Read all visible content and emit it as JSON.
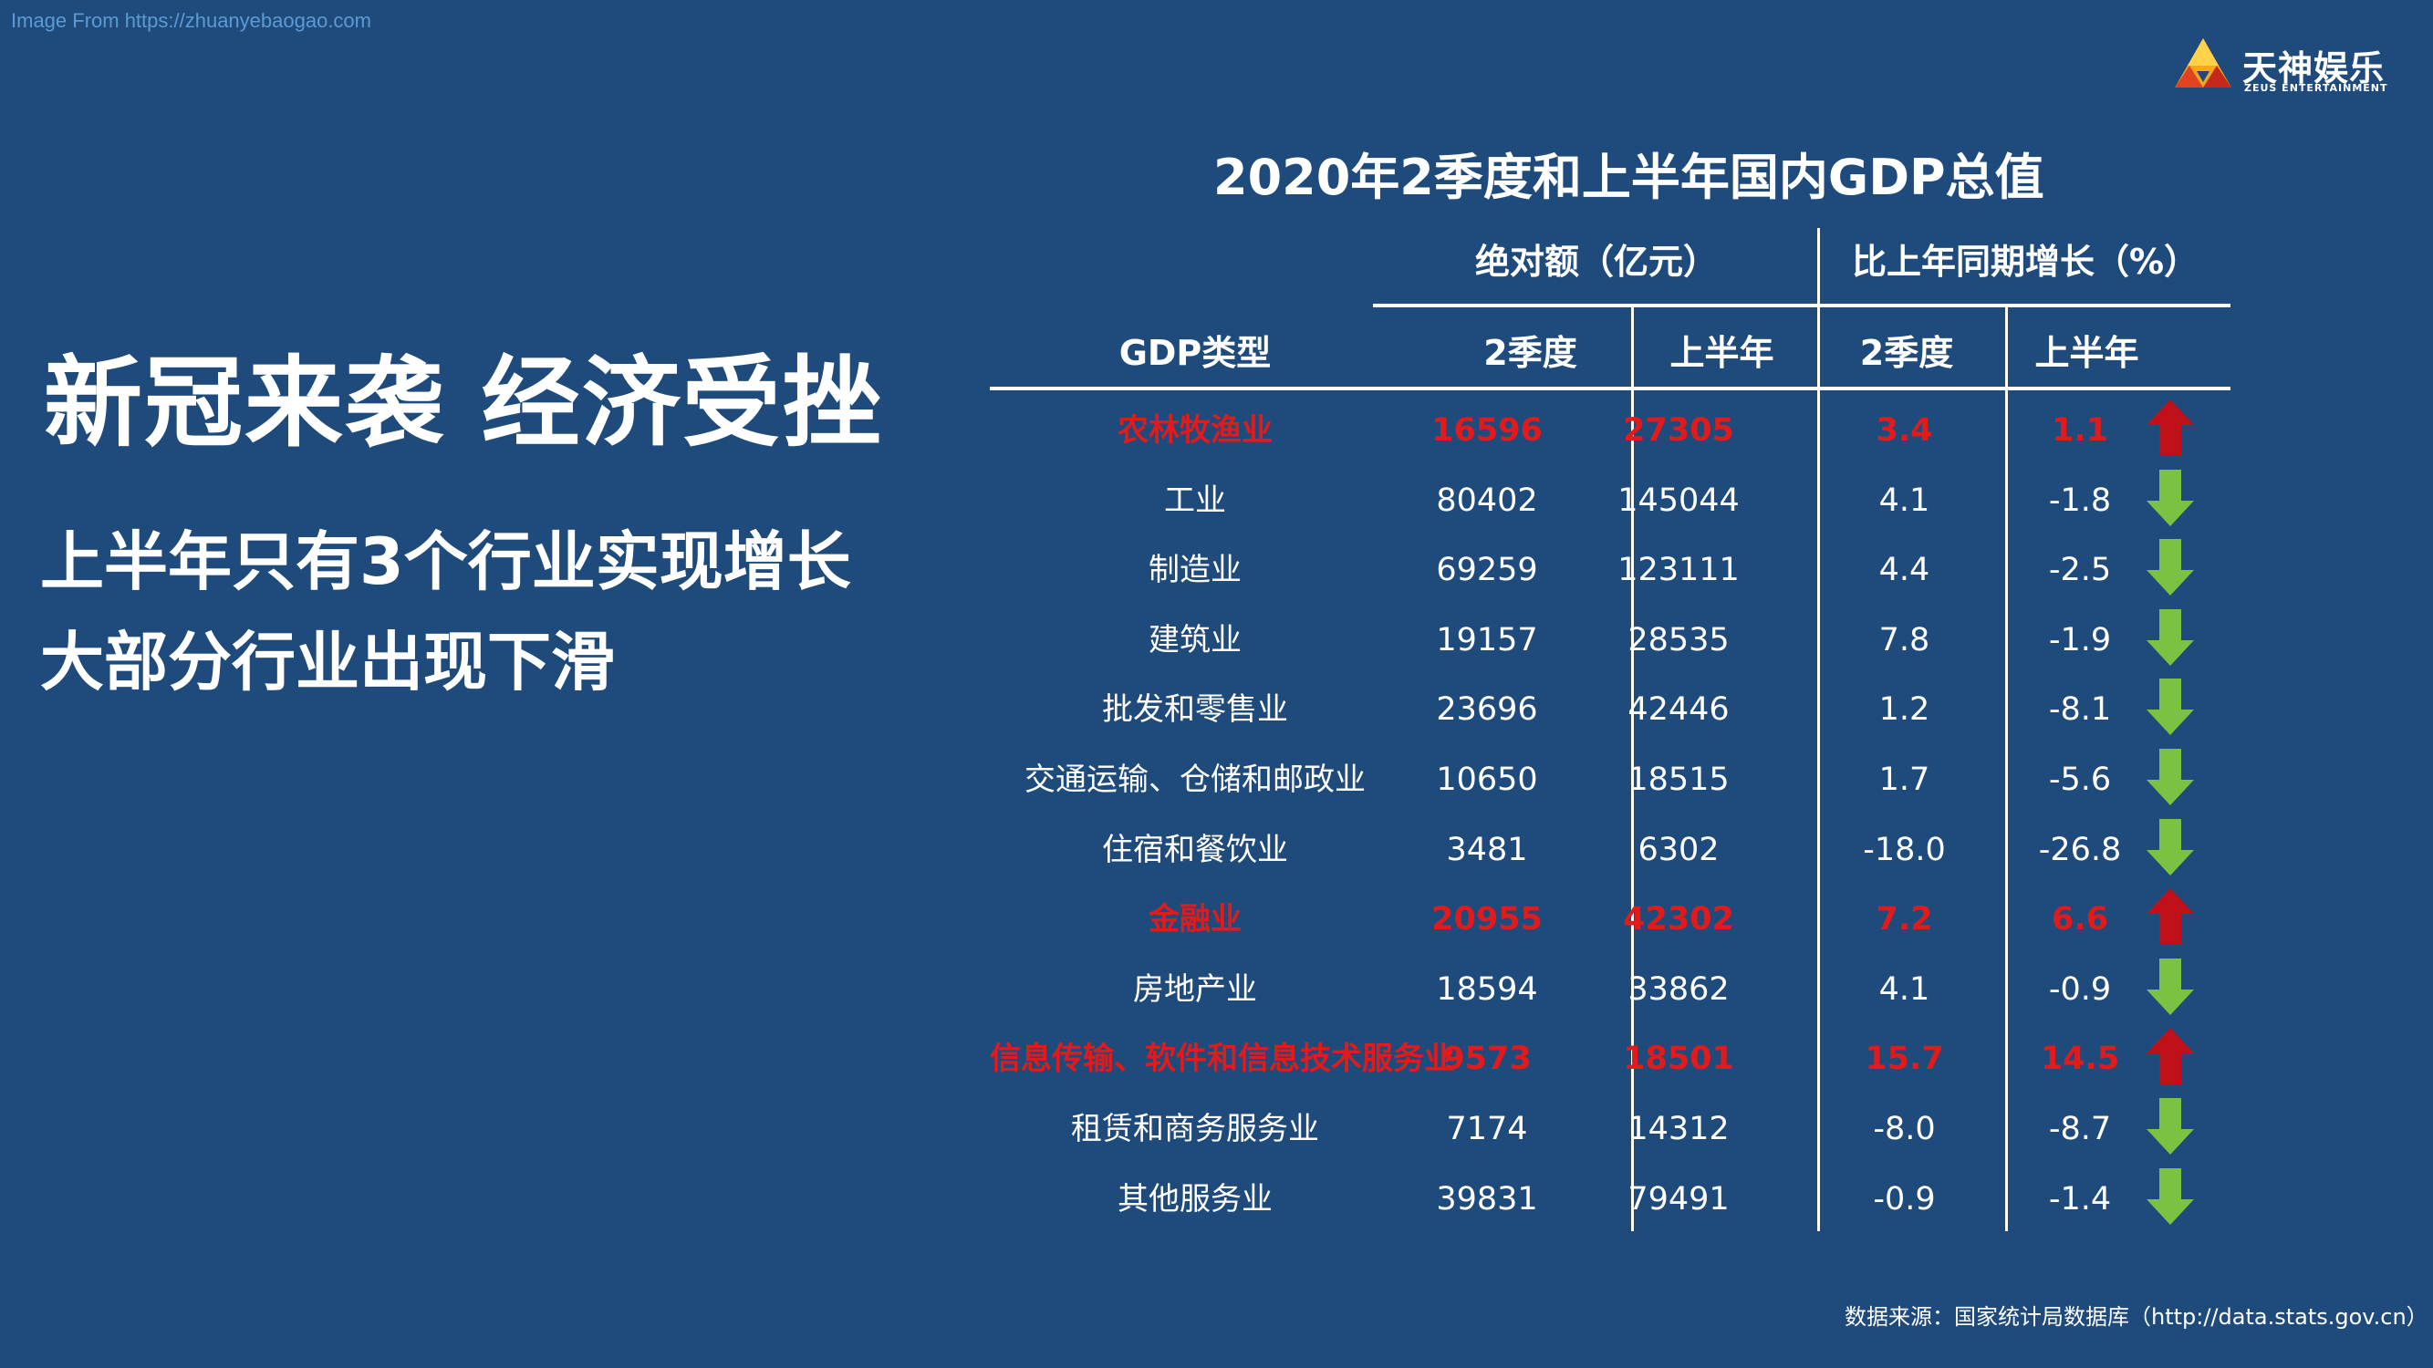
{
  "source_url": "Image From https://zhuanyebaogao.com",
  "logo": {
    "name": "天神娱乐",
    "sub": "ZEUS ENTERTAINMENT"
  },
  "headline": "新冠来袭 经济受挫",
  "sublines": [
    "上半年只有3个行业实现增长",
    "大部分行业出现下滑"
  ],
  "table": {
    "title": "2020年2季度和上半年国内GDP总值",
    "group_headers": {
      "absolute": "绝对额（亿元）",
      "growth": "比上年同期增长（%）"
    },
    "columns": {
      "type": "GDP类型",
      "abs_q2": "2季度",
      "abs_h1": "上半年",
      "growth_q2": "2季度",
      "growth_h1": "上半年"
    },
    "colors": {
      "highlight": "#e11b1b",
      "up_arrow": "#c0101a",
      "down_arrow": "#7cc242",
      "background": "#1f4a7c"
    },
    "rows": [
      {
        "name": "农林牧渔业",
        "q2": "16596",
        "h1": "27305",
        "gq2": "3.4",
        "gh1": "1.1",
        "trend": "up",
        "highlight": true
      },
      {
        "name": "工业",
        "q2": "80402",
        "h1": "145044",
        "gq2": "4.1",
        "gh1": "-1.8",
        "trend": "down",
        "highlight": false
      },
      {
        "name": "制造业",
        "q2": "69259",
        "h1": "123111",
        "gq2": "4.4",
        "gh1": "-2.5",
        "trend": "down",
        "highlight": false
      },
      {
        "name": "建筑业",
        "q2": "19157",
        "h1": "28535",
        "gq2": "7.8",
        "gh1": "-1.9",
        "trend": "down",
        "highlight": false
      },
      {
        "name": "批发和零售业",
        "q2": "23696",
        "h1": "42446",
        "gq2": "1.2",
        "gh1": "-8.1",
        "trend": "down",
        "highlight": false
      },
      {
        "name": "交通运输、仓储和邮政业",
        "q2": "10650",
        "h1": "18515",
        "gq2": "1.7",
        "gh1": "-5.6",
        "trend": "down",
        "highlight": false
      },
      {
        "name": "住宿和餐饮业",
        "q2": "3481",
        "h1": "6302",
        "gq2": "-18.0",
        "gh1": "-26.8",
        "trend": "down",
        "highlight": false
      },
      {
        "name": "金融业",
        "q2": "20955",
        "h1": "42302",
        "gq2": "7.2",
        "gh1": "6.6",
        "trend": "up",
        "highlight": true
      },
      {
        "name": "房地产业",
        "q2": "18594",
        "h1": "33862",
        "gq2": "4.1",
        "gh1": "-0.9",
        "trend": "down",
        "highlight": false
      },
      {
        "name": "信息传输、软件和信息技术服务业",
        "q2": "9573",
        "h1": "18501",
        "gq2": "15.7",
        "gh1": "14.5",
        "trend": "up",
        "highlight": true
      },
      {
        "name": "租赁和商务服务业",
        "q2": "7174",
        "h1": "14312",
        "gq2": "-8.0",
        "gh1": "-8.7",
        "trend": "down",
        "highlight": false
      },
      {
        "name": "其他服务业",
        "q2": "39831",
        "h1": "79491",
        "gq2": "-0.9",
        "gh1": "-1.4",
        "trend": "down",
        "highlight": false
      }
    ]
  },
  "footer": "数据来源：国家统计局数据库（http://data.stats.gov.cn）"
}
